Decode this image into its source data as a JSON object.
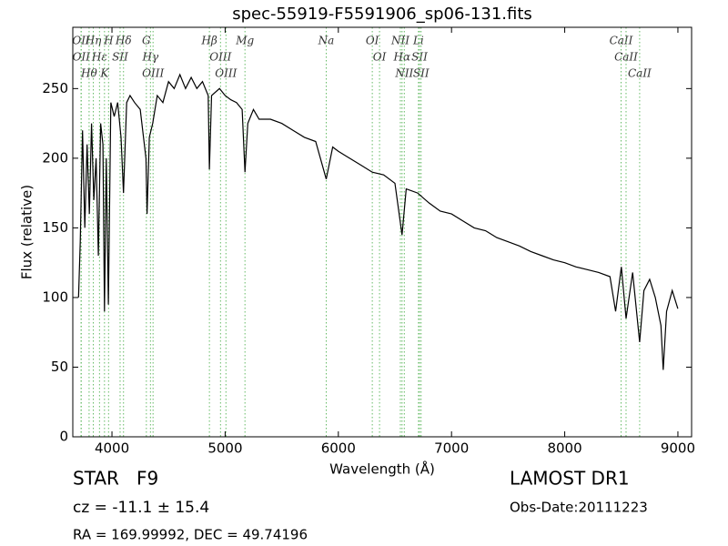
{
  "chart_data": {
    "type": "line",
    "title": "spec-55919-F5591906_sp06-131.fits",
    "x_label": "Wavelength (Å)",
    "y_label": "Flux (relative)",
    "xlim": [
      3654,
      9121
    ],
    "ylim": [
      0,
      294
    ],
    "xticks": [
      4000,
      5000,
      6000,
      7000,
      8000,
      9000
    ],
    "yticks": [
      0,
      50,
      100,
      150,
      200,
      250
    ],
    "series": [
      {
        "color": "#000000",
        "x": [
          3705,
          3720,
          3740,
          3760,
          3780,
          3800,
          3820,
          3840,
          3860,
          3880,
          3900,
          3920,
          3934,
          3950,
          3968,
          3990,
          4020,
          4050,
          4080,
          4102,
          4130,
          4160,
          4200,
          4250,
          4300,
          4310,
          4330,
          4360,
          4400,
          4450,
          4500,
          4550,
          4600,
          4650,
          4700,
          4750,
          4800,
          4850,
          4861,
          4880,
          4950,
          5000,
          5050,
          5100,
          5150,
          5175,
          5200,
          5250,
          5300,
          5400,
          5500,
          5600,
          5700,
          5800,
          5893,
          5950,
          6000,
          6100,
          6200,
          6300,
          6400,
          6500,
          6563,
          6600,
          6700,
          6800,
          6900,
          7000,
          7100,
          7200,
          7300,
          7400,
          7500,
          7600,
          7700,
          7800,
          7900,
          8000,
          8100,
          8200,
          8300,
          8400,
          8450,
          8500,
          8542,
          8600,
          8662,
          8700,
          8750,
          8800,
          8850,
          8870,
          8900,
          8950,
          9000
        ],
        "values": [
          100,
          140,
          220,
          150,
          210,
          160,
          225,
          170,
          200,
          130,
          225,
          210,
          90,
          200,
          95,
          240,
          230,
          240,
          215,
          175,
          240,
          245,
          240,
          235,
          200,
          160,
          215,
          225,
          245,
          240,
          255,
          250,
          260,
          250,
          258,
          250,
          255,
          245,
          192,
          245,
          250,
          245,
          242,
          240,
          235,
          190,
          225,
          235,
          228,
          228,
          225,
          220,
          215,
          212,
          185,
          208,
          205,
          200,
          195,
          190,
          188,
          182,
          145,
          178,
          175,
          168,
          162,
          160,
          155,
          150,
          148,
          143,
          140,
          137,
          133,
          130,
          127,
          125,
          122,
          120,
          118,
          115,
          90,
          122,
          85,
          118,
          68,
          105,
          113,
          100,
          80,
          48,
          90,
          105,
          92
        ]
      }
    ],
    "line_color": "#66bb66",
    "lines": [
      {
        "label": "OII",
        "wavelength": 3727
      },
      {
        "label": "OII",
        "wavelength": 3729
      },
      {
        "label": "Hθ",
        "wavelength": 3798
      },
      {
        "label": "Hη",
        "wavelength": 3835
      },
      {
        "label": "K",
        "wavelength": 3934
      },
      {
        "label": "Hε",
        "wavelength": 3890
      },
      {
        "label": "H",
        "wavelength": 3970
      },
      {
        "label": "SII",
        "wavelength": 4072
      },
      {
        "label": "Hδ",
        "wavelength": 4102
      },
      {
        "label": "G",
        "wavelength": 4304
      },
      {
        "label": "Hγ",
        "wavelength": 4340
      },
      {
        "label": "OIII",
        "wavelength": 4363
      },
      {
        "label": "Hβ",
        "wavelength": 4861
      },
      {
        "label": "OIII",
        "wavelength": 4959
      },
      {
        "label": "OIII",
        "wavelength": 5007
      },
      {
        "label": "Mg",
        "wavelength": 5175
      },
      {
        "label": "Na",
        "wavelength": 5893
      },
      {
        "label": "OI",
        "wavelength": 6300
      },
      {
        "label": "OI",
        "wavelength": 6364
      },
      {
        "label": "NII",
        "wavelength": 6548
      },
      {
        "label": "Hα",
        "wavelength": 6563
      },
      {
        "label": "NII",
        "wavelength": 6583
      },
      {
        "label": "Li",
        "wavelength": 6708
      },
      {
        "label": "SII",
        "wavelength": 6717
      },
      {
        "label": "SII",
        "wavelength": 6731
      },
      {
        "label": "CaII",
        "wavelength": 8498
      },
      {
        "label": "CaII",
        "wavelength": 8542
      },
      {
        "label": "CaII",
        "wavelength": 8662
      }
    ],
    "object_class": "STAR   F9",
    "redshift": "cz = -11.1 ± 15.4",
    "coordinates": "RA = 169.99992, DEC = 49.74196",
    "survey": "LAMOST DR1",
    "obs_date": "Obs-Date:20111223"
  }
}
